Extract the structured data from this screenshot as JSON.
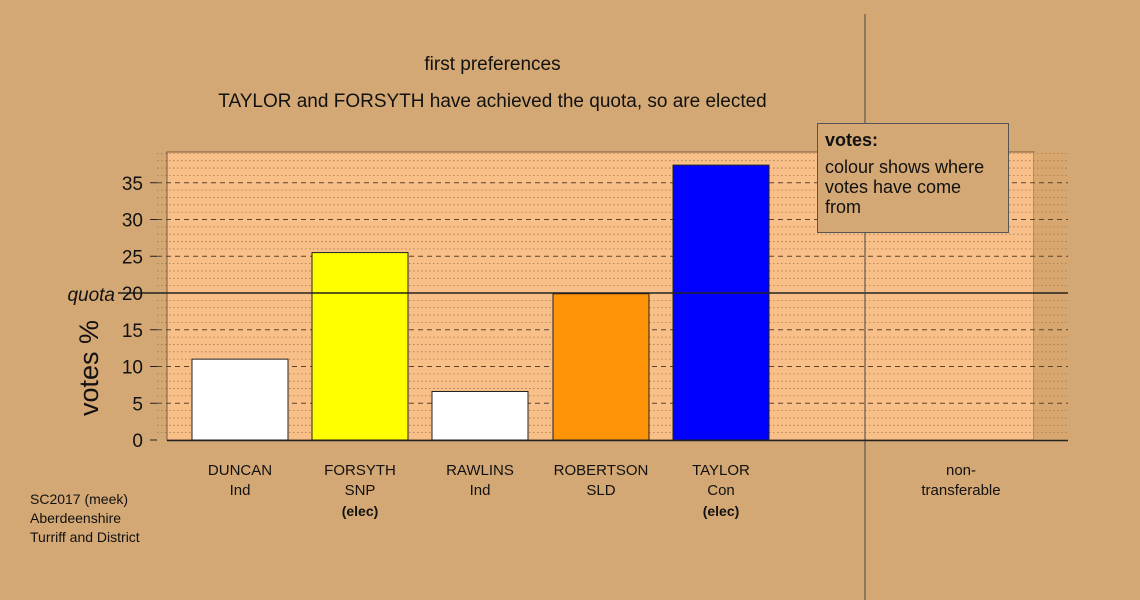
{
  "chart_data": {
    "type": "bar",
    "subtitle": "first preferences",
    "title": "TAYLOR and FORSYTH have achieved the quota, so are elected",
    "ylabel": "votes %",
    "ylim": [
      0,
      39
    ],
    "yticks": [
      0,
      5,
      10,
      15,
      20,
      25,
      30,
      35
    ],
    "quota": 20,
    "quota_label": "quota",
    "categories": [
      {
        "name": "DUNCAN",
        "party": "Ind",
        "elec": "",
        "value": 11,
        "color": "#ffffff"
      },
      {
        "name": "FORSYTH",
        "party": "SNP",
        "elec": "(elec)",
        "value": 25.5,
        "color": "#ffff00"
      },
      {
        "name": "RAWLINS",
        "party": "Ind",
        "elec": "",
        "value": 6.6,
        "color": "#ffffff"
      },
      {
        "name": "ROBERTSON",
        "party": "SLD",
        "elec": "",
        "value": 19.9,
        "color": "#ff9408"
      },
      {
        "name": "TAYLOR",
        "party": "Con",
        "elec": "(elec)",
        "value": 37.4,
        "color": "#0000ff"
      }
    ],
    "extra_category": {
      "name": "non-",
      "party": "transferable",
      "value": 0
    },
    "legend": {
      "title": "votes:",
      "body": "colour shows where votes have come from",
      "placement": "top-right"
    },
    "grid": true
  },
  "footer": {
    "line1": "SC2017 (meek)",
    "line2": "Aberdeenshire",
    "line3": "Turriff and District"
  }
}
